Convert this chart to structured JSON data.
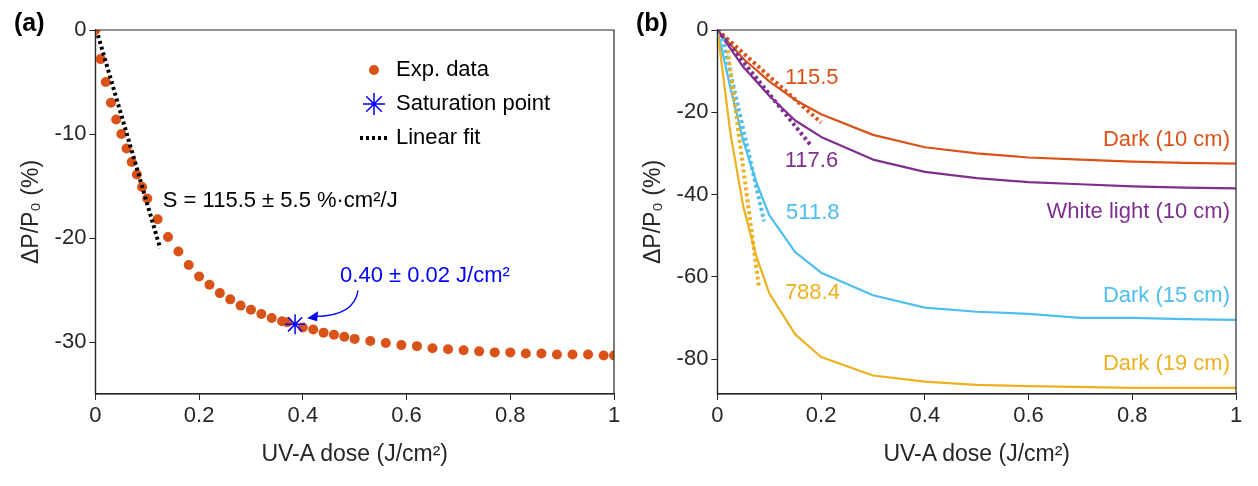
{
  "chart_data": [
    {
      "type": "scatter",
      "xlabel": "UV-A dose (J/cm²)",
      "ylabel": "ΔP/P₀ (%)",
      "xlim": [
        0,
        1
      ],
      "ylim": [
        -35,
        0
      ],
      "xticks": [
        0,
        0.2,
        0.4,
        0.6,
        0.8,
        1
      ],
      "yticks": [
        -30,
        -20,
        -10,
        0
      ],
      "grid": false,
      "legend": "top right",
      "annotations": [
        "(a)",
        "S = 115.5 ± 5.5 %·cm²/J",
        {
          "text": "0.40 ± 0.02 J/cm²",
          "x": 0.385,
          "y": -28.3
        }
      ],
      "series": [
        {
          "name": "Exp. data",
          "marker": "circle",
          "color": "#d95319",
          "x": [
            0,
            0.01,
            0.02,
            0.03,
            0.04,
            0.05,
            0.06,
            0.07,
            0.08,
            0.09,
            0.1,
            0.12,
            0.14,
            0.16,
            0.18,
            0.2,
            0.22,
            0.24,
            0.26,
            0.28,
            0.3,
            0.32,
            0.34,
            0.36,
            0.37,
            0.4,
            0.42,
            0.44,
            0.46,
            0.48,
            0.5,
            0.53,
            0.56,
            0.59,
            0.62,
            0.65,
            0.68,
            0.71,
            0.74,
            0.77,
            0.8,
            0.83,
            0.86,
            0.89,
            0.92,
            0.95,
            0.98,
            1
          ],
          "values": [
            0,
            -2.8,
            -5,
            -7,
            -8.6,
            -10,
            -11.4,
            -12.7,
            -13.9,
            -15.1,
            -16.2,
            -18.2,
            -19.9,
            -21.3,
            -22.6,
            -23.7,
            -24.5,
            -25.3,
            -25.9,
            -26.5,
            -26.9,
            -27.3,
            -27.7,
            -28,
            -28.1,
            -28.6,
            -28.8,
            -29.1,
            -29.3,
            -29.5,
            -29.7,
            -29.9,
            -30.1,
            -30.3,
            -30.4,
            -30.6,
            -30.7,
            -30.8,
            -30.9,
            -31,
            -31,
            -31.1,
            -31.1,
            -31.2,
            -31.2,
            -31.2,
            -31.3,
            -31.3
          ]
        },
        {
          "name": "Saturation point",
          "marker": "cross",
          "color": "#0000ff",
          "x": [
            0.385
          ],
          "values": [
            -28.3
          ]
        },
        {
          "name": "Linear fit",
          "type": "line",
          "marker": "none",
          "line_style": "dotted",
          "color": "#000000",
          "x": [
            0.005,
            0.125
          ],
          "values": [
            -0.5,
            -21
          ]
        }
      ]
    },
    {
      "type": "line",
      "xlabel": "UV-A dose (J/cm²)",
      "ylabel": "ΔP/P₀ (%)",
      "xlim": [
        0,
        1
      ],
      "ylim": [
        -88.5,
        0
      ],
      "xticks": [
        0,
        0.2,
        0.4,
        0.6,
        0.8,
        1
      ],
      "yticks": [
        -80,
        -60,
        -40,
        -20,
        0
      ],
      "grid": false,
      "legend": false,
      "annotations": [
        "(b)",
        {
          "text": "115.5",
          "x": 0.2,
          "y": -22.5
        },
        {
          "text": "117.6",
          "x": 0.18,
          "y": -28
        },
        {
          "text": "511.8",
          "x": 0.09,
          "y": -46.5
        },
        {
          "text": "788.4",
          "x": 0.08,
          "y": -62.5
        }
      ],
      "series": [
        {
          "name": "Dark (10 cm)",
          "color": "#d95319",
          "x": [
            0,
            0.05,
            0.1,
            0.15,
            0.2,
            0.3,
            0.4,
            0.5,
            0.6,
            0.7,
            0.8,
            0.9,
            1
          ],
          "values": [
            0,
            -7,
            -12.5,
            -17,
            -20.5,
            -25.5,
            -28.5,
            -30,
            -31,
            -31.5,
            -32,
            -32.3,
            -32.5
          ]
        },
        {
          "name": "White light (10 cm)",
          "color": "#7e2f8e",
          "x": [
            0,
            0.05,
            0.1,
            0.15,
            0.2,
            0.3,
            0.4,
            0.5,
            0.6,
            0.7,
            0.8,
            0.9,
            1
          ],
          "values": [
            0,
            -9,
            -16,
            -22,
            -26,
            -31.5,
            -34.5,
            -36,
            -37,
            -37.5,
            -38,
            -38.3,
            -38.5
          ]
        },
        {
          "name": "Dark (15 cm)",
          "color": "#4dbeee",
          "x": [
            0,
            0.025,
            0.05,
            0.075,
            0.1,
            0.15,
            0.2,
            0.3,
            0.4,
            0.5,
            0.6,
            0.7,
            0.8,
            0.9,
            1
          ],
          "values": [
            0,
            -14,
            -27,
            -37,
            -45,
            -54,
            -59,
            -64.5,
            -67.5,
            -68.5,
            -69,
            -70,
            -70,
            -70.3,
            -70.5
          ]
        },
        {
          "name": "Dark (19 cm)",
          "color": "#edb120",
          "x": [
            0,
            0.025,
            0.05,
            0.075,
            0.1,
            0.15,
            0.2,
            0.3,
            0.4,
            0.5,
            0.6,
            0.8,
            1
          ],
          "values": [
            0,
            -25,
            -43,
            -55,
            -64,
            -74,
            -79.5,
            -84,
            -85.5,
            -86.3,
            -86.6,
            -87,
            -87
          ]
        },
        {
          "type": "line",
          "line_style": "dotted",
          "color": "#d95319",
          "x": [
            0,
            0.2
          ],
          "values": [
            0,
            -22.5
          ]
        },
        {
          "type": "line",
          "line_style": "dotted",
          "color": "#7e2f8e",
          "x": [
            0,
            0.18
          ],
          "values": [
            0,
            -28
          ]
        },
        {
          "type": "line",
          "line_style": "dotted",
          "color": "#4dbeee",
          "x": [
            0.01,
            0.09
          ],
          "values": [
            -2,
            -46.5
          ]
        },
        {
          "type": "line",
          "line_style": "dotted",
          "color": "#edb120",
          "x": [
            0.02,
            0.08
          ],
          "values": [
            -5,
            -62.5
          ]
        }
      ]
    }
  ]
}
